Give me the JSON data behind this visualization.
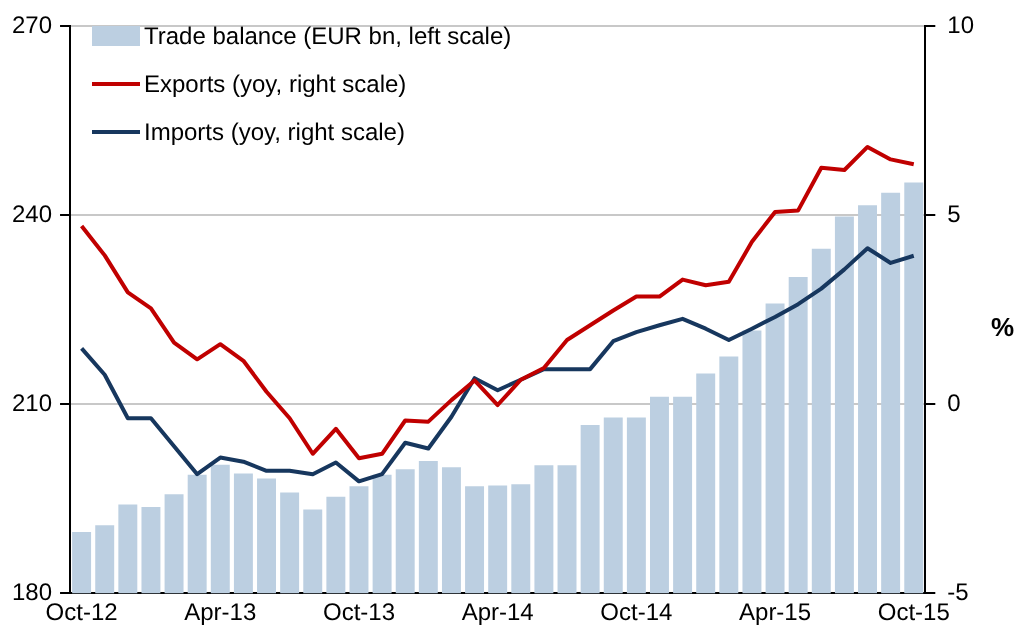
{
  "chart_data": {
    "type": "bar",
    "y2label": "%",
    "categories": [
      "Oct-12",
      null,
      null,
      null,
      null,
      null,
      "Apr-13",
      null,
      null,
      null,
      null,
      null,
      "Oct-13",
      null,
      null,
      null,
      null,
      null,
      "Apr-14",
      null,
      null,
      null,
      null,
      null,
      "Oct-14",
      null,
      null,
      null,
      null,
      null,
      "Apr-15",
      null,
      null,
      null,
      null,
      null,
      "Oct-15"
    ],
    "series": [
      {
        "name": "Trade balance (EUR bn, left scale)",
        "color": "#bccfe1",
        "values": [
          189.7,
          190.8,
          194.1,
          193.7,
          195.7,
          198.8,
          200.4,
          199,
          198.2,
          196,
          193.3,
          195.3,
          197,
          198.8,
          199.7,
          201,
          200,
          197,
          197.1,
          197.3,
          200.3,
          200.3,
          206.7,
          207.9,
          207.9,
          211.2,
          211.2,
          214.9,
          217.6,
          221.7,
          226,
          230.2,
          234.7,
          239.8,
          241.6,
          243.6,
          245.2
        ]
      },
      {
        "name": "Exports (yoy, right scale)",
        "type": "line",
        "axis": "y2",
        "color": "#c00000",
        "values": [
          4.72,
          3.94,
          2.96,
          2.54,
          1.63,
          1.19,
          1.59,
          1.15,
          0.33,
          -0.37,
          -1.31,
          -0.65,
          -1.43,
          -1.31,
          -0.43,
          -0.46,
          0.11,
          0.63,
          -0.02,
          0.65,
          0.96,
          1.7,
          2.09,
          2.48,
          2.85,
          2.85,
          3.3,
          3.15,
          3.24,
          4.3,
          5.09,
          5.13,
          6.26,
          6.2,
          6.81,
          6.48,
          6.35
        ]
      },
      {
        "name": "Imports (yoy, right scale)",
        "type": "line",
        "axis": "y2",
        "color": "#17375e",
        "values": [
          1.48,
          0.78,
          -0.37,
          -0.37,
          -1.11,
          -1.85,
          -1.41,
          -1.52,
          -1.76,
          -1.76,
          -1.85,
          -1.54,
          -2.04,
          -1.85,
          -1.02,
          -1.17,
          -0.33,
          0.69,
          0.37,
          0.65,
          0.93,
          0.93,
          0.93,
          1.67,
          1.91,
          2.09,
          2.26,
          2,
          1.7,
          2,
          2.31,
          2.65,
          3.06,
          3.57,
          4.13,
          3.74,
          3.93
        ]
      }
    ],
    "ylim": [
      180,
      270
    ],
    "yticks": [
      180,
      210,
      240,
      270
    ],
    "y2lim": [
      -5,
      10
    ],
    "y2ticks": [
      -5,
      0,
      5,
      10
    ],
    "grid": "y",
    "legend": "top left",
    "marker": "none"
  }
}
